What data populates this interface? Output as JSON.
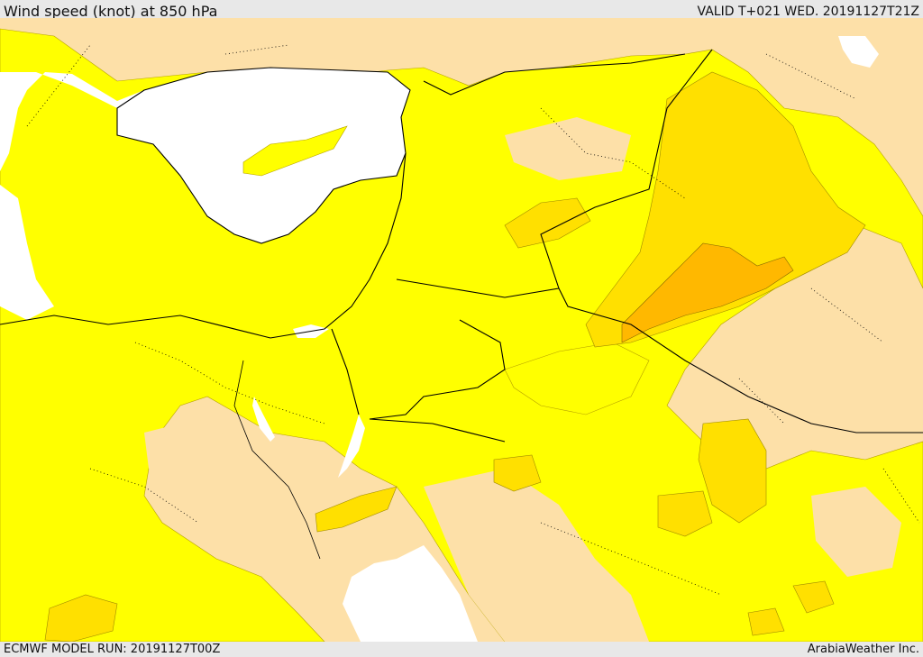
{
  "header": {
    "title": "Wind speed (knot) at 850 hPa",
    "valid": "VALID T+021 WED. 20191127T21Z"
  },
  "footer": {
    "model_run": "ECMWF MODEL RUN: 20191127T00Z",
    "credit": "ArabiaWeather Inc."
  },
  "colors": {
    "sea": "#ffffff",
    "level_1": "#fde0a8",
    "level_2": "#ffff00",
    "level_3": "#ffe000",
    "level_4": "#ffb800",
    "border": "#000000"
  }
}
